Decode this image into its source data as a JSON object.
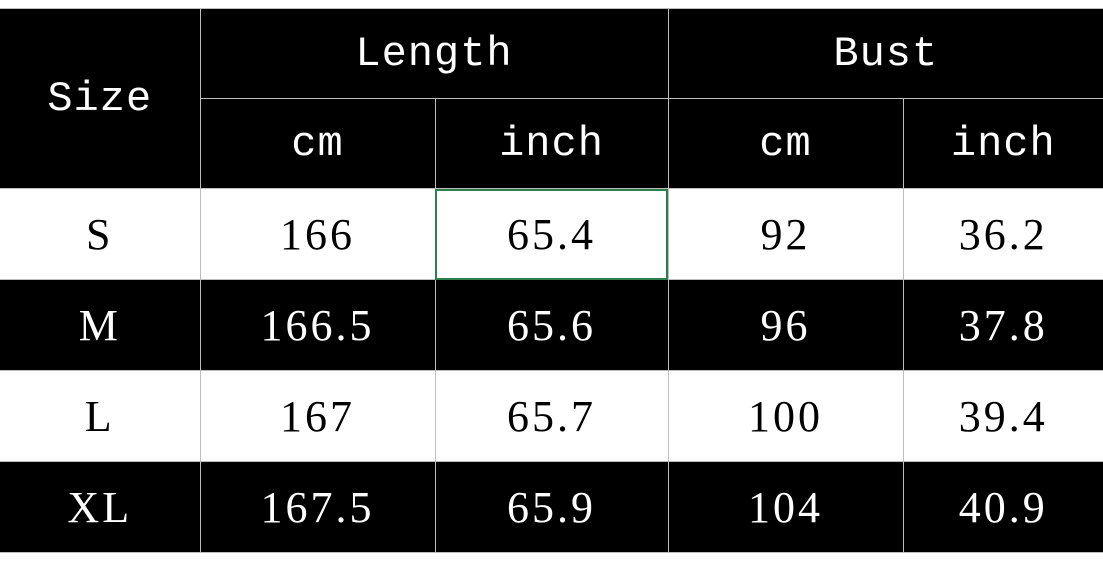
{
  "table": {
    "size_header": "Size",
    "groups": [
      "Length",
      "Bust"
    ],
    "units": [
      "cm",
      "inch",
      "cm",
      "inch"
    ],
    "rows": [
      [
        "S",
        "166",
        "65.4",
        "92",
        "36.2"
      ],
      [
        "M",
        "166.5",
        "65.6",
        "96",
        "37.8"
      ],
      [
        "L",
        "167",
        "65.7",
        "100",
        "39.4"
      ],
      [
        "XL",
        "167.5",
        "65.9",
        "104",
        "40.9"
      ]
    ],
    "selected_cell": "S / Length inch"
  },
  "colors": {
    "dark_row": "#000000",
    "light_row": "#ffffff",
    "selection": "#2e7d4f",
    "grid": "#bdbdbd"
  }
}
